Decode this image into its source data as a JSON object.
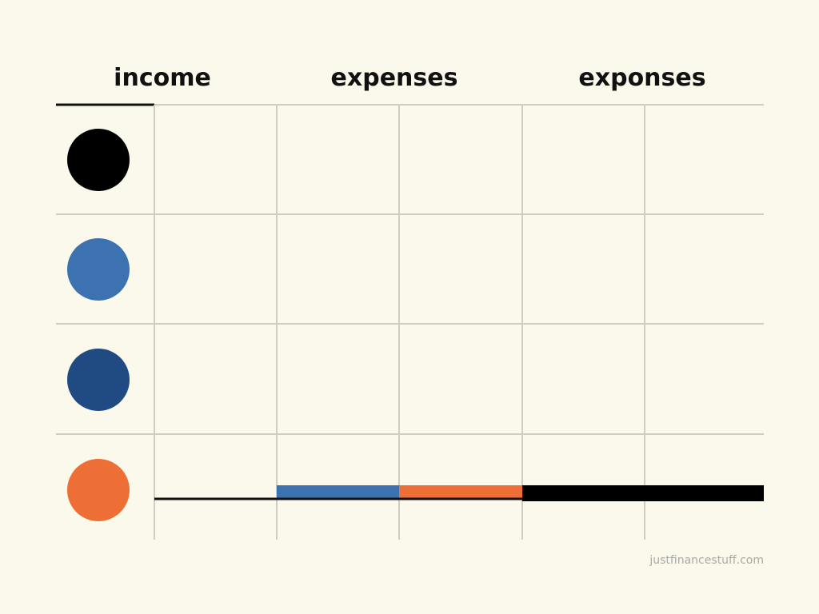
{
  "header": {
    "columns": [
      "income",
      "expenses",
      "exponses"
    ]
  },
  "footer": {
    "watermark": "justfinancestuff.com"
  }
}
